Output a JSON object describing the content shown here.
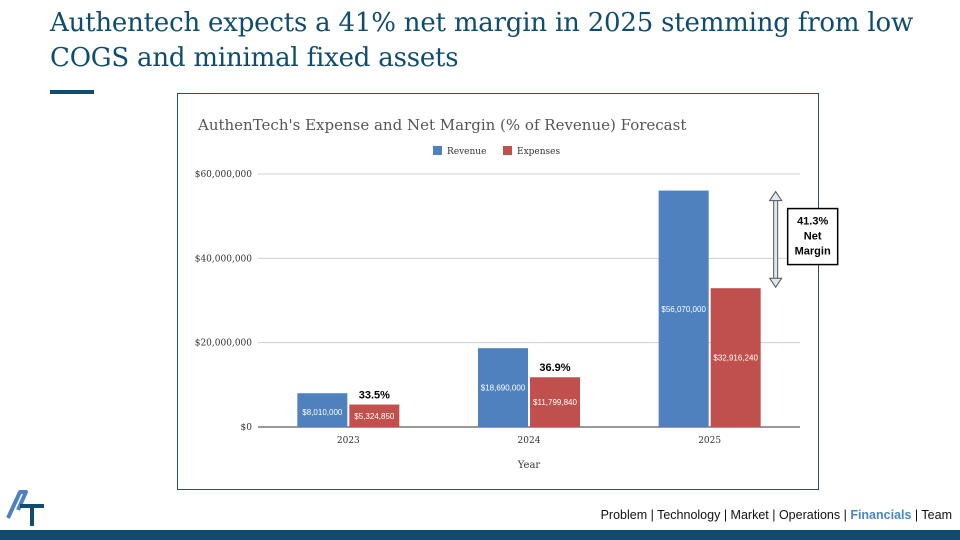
{
  "slide": {
    "title": "Authentech expects a 41% net margin in 2025 stemming from low COGS and minimal fixed assets"
  },
  "nav": {
    "items": [
      {
        "label": "Problem",
        "active": false
      },
      {
        "label": "Technology",
        "active": false
      },
      {
        "label": "Market",
        "active": false
      },
      {
        "label": "Operations",
        "active": false
      },
      {
        "label": "Financials",
        "active": true
      },
      {
        "label": "Team",
        "active": false
      }
    ],
    "separator": " | "
  },
  "logo": {
    "text": "AT"
  },
  "colors": {
    "brand": "#0f4c6e",
    "revenue": "#4e81bd",
    "expenses": "#c0504d",
    "nav_active": "#4a86c5"
  },
  "chart_data": {
    "type": "bar",
    "title": "AuthenTech's Expense and Net Margin (% of Revenue) Forecast",
    "xlabel": "Year",
    "ylabel": "",
    "categories": [
      "2023",
      "2024",
      "2025"
    ],
    "series": [
      {
        "name": "Revenue",
        "values": [
          8010000,
          18690000,
          56070000
        ],
        "labels": [
          "$8,010,000",
          "$18,690,000",
          "$56,070,000"
        ]
      },
      {
        "name": "Expenses",
        "values": [
          5324850,
          11799840,
          32916240
        ],
        "labels": [
          "$5,324,850",
          "$11,799,840",
          "$32,916,240"
        ]
      }
    ],
    "ylim": [
      0,
      60000000
    ],
    "yticks": [
      0,
      20000000,
      40000000,
      60000000
    ],
    "ytick_labels": [
      "$0",
      "$20,000,000",
      "$40,000,000",
      "$60,000,000"
    ],
    "legend": "top-center",
    "grid": true,
    "annotations": [
      {
        "category": "2023",
        "text": "33.5%"
      },
      {
        "category": "2024",
        "text": "36.9%"
      },
      {
        "category": "2025",
        "text": "41.3% Net Margin",
        "lines": [
          "41.3%",
          "Net",
          "Margin"
        ],
        "boxed": true,
        "arrow": true
      }
    ]
  }
}
